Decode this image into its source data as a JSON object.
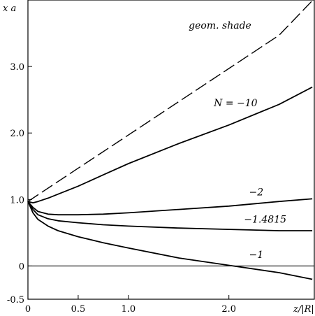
{
  "chart_data": {
    "type": "line",
    "title": "",
    "xlabel": "z/|R|",
    "ylabel": "x a",
    "xlim": [
      0,
      2.85
    ],
    "ylim": [
      -0.5,
      4.0
    ],
    "grid": false,
    "x_ticks": [
      {
        "value": 0,
        "label": "0"
      },
      {
        "value": 0.5,
        "label": "0.5"
      },
      {
        "value": 1.0,
        "label": "1.0"
      },
      {
        "value": 2.0,
        "label": "2.0"
      }
    ],
    "y_ticks": [
      {
        "value": -0.5,
        "label": "-0.5"
      },
      {
        "value": 0,
        "label": "0"
      },
      {
        "value": 1.0,
        "label": "1.0"
      },
      {
        "value": 2.0,
        "label": "2.0"
      },
      {
        "value": 3.0,
        "label": "3.0"
      }
    ],
    "series": [
      {
        "label": "geom. shade",
        "dashed": true,
        "x": [
          0,
          0.5,
          1.0,
          1.5,
          2.0,
          2.5,
          2.83
        ],
        "y": [
          0.97,
          1.47,
          1.97,
          2.47,
          2.97,
          3.47,
          3.99
        ]
      },
      {
        "label": "N = -10",
        "dashed": false,
        "x": [
          0,
          0.05,
          0.1,
          0.2,
          0.3,
          0.5,
          0.75,
          1.0,
          1.5,
          2.0,
          2.5,
          2.83
        ],
        "y": [
          0.97,
          0.95,
          0.97,
          1.02,
          1.08,
          1.2,
          1.37,
          1.54,
          1.84,
          2.12,
          2.43,
          2.69
        ]
      },
      {
        "label": "-2",
        "dashed": false,
        "x": [
          0,
          0.05,
          0.1,
          0.2,
          0.3,
          0.5,
          0.75,
          1.0,
          1.5,
          2.0,
          2.5,
          2.83
        ],
        "y": [
          0.97,
          0.88,
          0.82,
          0.78,
          0.77,
          0.77,
          0.78,
          0.8,
          0.85,
          0.9,
          0.97,
          1.01
        ]
      },
      {
        "label": "-1.4815",
        "dashed": false,
        "x": [
          0,
          0.05,
          0.1,
          0.2,
          0.3,
          0.5,
          0.75,
          1.0,
          1.5,
          2.0,
          2.5,
          2.83
        ],
        "y": [
          0.97,
          0.85,
          0.77,
          0.71,
          0.68,
          0.65,
          0.62,
          0.6,
          0.57,
          0.55,
          0.53,
          0.53
        ]
      },
      {
        "label": "-1",
        "dashed": false,
        "x": [
          0,
          0.05,
          0.1,
          0.2,
          0.3,
          0.5,
          0.75,
          1.0,
          1.5,
          2.0,
          2.5,
          2.83
        ],
        "y": [
          0.97,
          0.8,
          0.7,
          0.6,
          0.53,
          0.44,
          0.35,
          0.27,
          0.12,
          0.01,
          -0.1,
          -0.2
        ]
      }
    ],
    "annotations": [
      {
        "text": "geom. shade",
        "x": 1.6,
        "y": 3.57
      },
      {
        "text": "N = −10",
        "x": 1.85,
        "y": 2.4
      },
      {
        "text": "−2",
        "x": 2.2,
        "y": 1.06
      },
      {
        "text": "−1.4815",
        "x": 2.15,
        "y": 0.65
      },
      {
        "text": "−1",
        "x": 2.2,
        "y": 0.12
      }
    ]
  }
}
